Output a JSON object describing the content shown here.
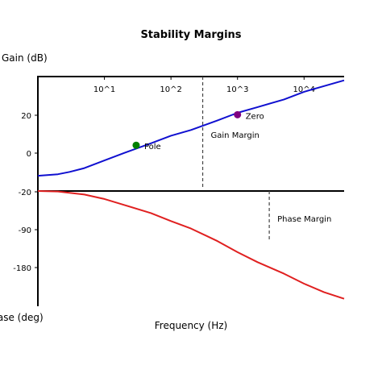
{
  "chart_data": {
    "type": "line",
    "title": "Stability Margins",
    "xlabel": "Frequency (Hz)",
    "ylabel_top": "Gain (dB)",
    "ylabel_bottom": "Phase (deg)",
    "x_ticks": [
      {
        "value": 10,
        "label": "10^1"
      },
      {
        "value": 100,
        "label": "10^2"
      },
      {
        "value": 1000,
        "label": "10^3"
      },
      {
        "value": 10000,
        "label": "10^4"
      }
    ],
    "xlim": [
      1,
      40000
    ],
    "y_ticks": [
      "20",
      "0",
      "-20",
      "-90",
      "-180"
    ],
    "series": [
      {
        "color": "#1010d0",
        "x": [
          1,
          2,
          3,
          5,
          10,
          20,
          50,
          100,
          200,
          500,
          1000,
          2000,
          5000,
          10000,
          20000,
          40000
        ],
        "y": [
          0,
          0.8,
          2,
          4,
          8,
          12,
          17,
          21,
          24,
          29,
          33,
          36,
          40,
          44,
          47,
          50
        ]
      },
      {
        "color": "#e02020",
        "x": [
          1,
          2,
          5,
          10,
          20,
          50,
          100,
          200,
          500,
          1000,
          2000,
          5000,
          10000,
          20000,
          40000
        ],
        "y": [
          -20,
          -21,
          -27,
          -36,
          -48,
          -64,
          -80,
          -95,
          -120,
          -142,
          -162,
          -185,
          -205,
          -222,
          -235
        ]
      }
    ],
    "markers": [
      {
        "label": "Pole",
        "x": 30,
        "y": 16,
        "color": "#008000"
      },
      {
        "label": "Zero",
        "x": 1000,
        "y": 32,
        "color": "#800080"
      }
    ],
    "annotations": [
      {
        "label": "Gain Margin",
        "x": 300
      },
      {
        "label": "Phase Margin",
        "x": 3000
      }
    ]
  }
}
